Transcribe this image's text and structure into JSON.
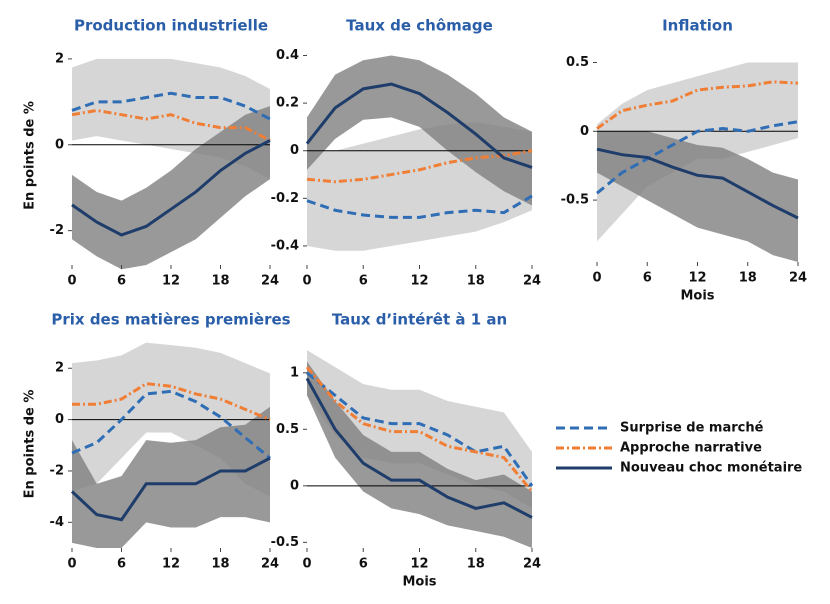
{
  "legend": [
    {
      "name": "Surprise de marché",
      "color": "#2f6db5",
      "dash": "9,5"
    },
    {
      "name": "Approche narrative",
      "color": "#f07e35",
      "dash": "8,3,2,3"
    },
    {
      "name": "Nouveau choc monétaire",
      "color": "#1f3d6b",
      "dash": "none"
    }
  ],
  "chart_data": [
    {
      "type": "line",
      "title": "Production industrielle",
      "ylabel": "En points de %",
      "x": [
        0,
        3,
        6,
        9,
        12,
        15,
        18,
        21,
        24
      ],
      "xlim": [
        0,
        24
      ],
      "xticks": [
        0,
        6,
        12,
        18,
        24
      ],
      "ylim": [
        -2.8,
        2.3
      ],
      "yticks": [
        2,
        0,
        -2
      ],
      "bands": [
        {
          "color": "#d6d6d6",
          "lower": [
            0.1,
            0.2,
            0.1,
            0,
            -0.1,
            -0.2,
            -0.3,
            -0.5,
            -0.8
          ],
          "upper": [
            1.8,
            2.0,
            2.0,
            2.0,
            2.0,
            1.9,
            1.8,
            1.6,
            1.3
          ]
        },
        {
          "color": "#7f7f7f",
          "lower": [
            -2.2,
            -2.6,
            -2.9,
            -2.8,
            -2.5,
            -2.2,
            -1.7,
            -1.2,
            -0.8
          ],
          "upper": [
            -0.7,
            -1.1,
            -1.3,
            -1.0,
            -0.6,
            -0.1,
            0.3,
            0.7,
            0.9
          ]
        }
      ],
      "series": [
        {
          "values": [
            0.8,
            1.0,
            1.0,
            1.1,
            1.2,
            1.1,
            1.1,
            0.9,
            0.6
          ]
        },
        {
          "values": [
            0.7,
            0.8,
            0.7,
            0.6,
            0.7,
            0.5,
            0.4,
            0.4,
            0.1
          ]
        },
        {
          "values": [
            -1.4,
            -1.8,
            -2.1,
            -1.9,
            -1.5,
            -1.1,
            -0.6,
            -0.2,
            0.1
          ]
        }
      ]
    },
    {
      "type": "line",
      "title": "Taux de chômage",
      "x": [
        0,
        3,
        6,
        9,
        12,
        15,
        18,
        21,
        24
      ],
      "xlim": [
        0,
        24
      ],
      "xticks": [
        0,
        6,
        12,
        18,
        24
      ],
      "ylim": [
        -0.48,
        0.44
      ],
      "yticks": [
        0.4,
        0.2,
        0,
        -0.2,
        -0.4
      ],
      "bands": [
        {
          "color": "#d6d6d6",
          "lower": [
            -0.4,
            -0.42,
            -0.42,
            -0.4,
            -0.38,
            -0.36,
            -0.34,
            -0.3,
            -0.25
          ],
          "upper": [
            0.0,
            0.0,
            0.03,
            0.06,
            0.09,
            0.11,
            0.12,
            0.1,
            0.08
          ]
        },
        {
          "color": "#7f7f7f",
          "lower": [
            -0.08,
            0.05,
            0.13,
            0.14,
            0.1,
            0.0,
            -0.09,
            -0.17,
            -0.23
          ],
          "upper": [
            0.14,
            0.32,
            0.38,
            0.4,
            0.38,
            0.32,
            0.24,
            0.14,
            0.08
          ]
        }
      ],
      "series": [
        {
          "values": [
            -0.21,
            -0.25,
            -0.27,
            -0.28,
            -0.28,
            -0.26,
            -0.25,
            -0.26,
            -0.19
          ]
        },
        {
          "values": [
            -0.12,
            -0.13,
            -0.12,
            -0.1,
            -0.08,
            -0.05,
            -0.03,
            -0.02,
            0.0
          ]
        },
        {
          "values": [
            0.03,
            0.18,
            0.26,
            0.28,
            0.24,
            0.16,
            0.07,
            -0.03,
            -0.07
          ]
        }
      ]
    },
    {
      "type": "line",
      "title": "Inflation",
      "xlabel": "Mois",
      "x": [
        0,
        3,
        6,
        9,
        12,
        15,
        18,
        21,
        24
      ],
      "xlim": [
        0,
        24
      ],
      "xticks": [
        0,
        6,
        12,
        18,
        24
      ],
      "ylim": [
        -0.95,
        0.62
      ],
      "yticks": [
        0.5,
        0,
        -0.5
      ],
      "bands": [
        {
          "color": "#d6d6d6",
          "lower": [
            -0.8,
            -0.6,
            -0.4,
            -0.3,
            -0.2,
            -0.2,
            -0.15,
            -0.1,
            -0.05
          ],
          "upper": [
            0.05,
            0.2,
            0.3,
            0.35,
            0.4,
            0.45,
            0.5,
            0.5,
            0.5
          ]
        },
        {
          "color": "#7f7f7f",
          "lower": [
            -0.3,
            -0.4,
            -0.5,
            -0.6,
            -0.7,
            -0.75,
            -0.8,
            -0.9,
            -0.95
          ],
          "upper": [
            0.0,
            0.0,
            0.0,
            -0.05,
            -0.1,
            -0.12,
            -0.2,
            -0.3,
            -0.35
          ]
        }
      ],
      "series": [
        {
          "values": [
            -0.45,
            -0.3,
            -0.2,
            -0.1,
            0.0,
            0.02,
            0.0,
            0.04,
            0.07
          ]
        },
        {
          "values": [
            0.02,
            0.15,
            0.19,
            0.22,
            0.3,
            0.32,
            0.33,
            0.36,
            0.35
          ]
        },
        {
          "values": [
            -0.13,
            -0.17,
            -0.19,
            -0.26,
            -0.32,
            -0.34,
            -0.44,
            -0.54,
            -0.63
          ]
        }
      ]
    },
    {
      "type": "line",
      "title": "Prix des matières premières",
      "ylabel": "En points de %",
      "x": [
        0,
        3,
        6,
        9,
        12,
        15,
        18,
        21,
        24
      ],
      "xlim": [
        0,
        24
      ],
      "xticks": [
        0,
        6,
        12,
        18,
        24
      ],
      "ylim": [
        -5,
        3.1
      ],
      "yticks": [
        2,
        0,
        -2,
        -4
      ],
      "bands": [
        {
          "color": "#d6d6d6",
          "lower": [
            -2.8,
            -2.5,
            -1.5,
            -0.5,
            -0.5,
            -1.0,
            -1.5,
            -2.5,
            -3.0
          ],
          "upper": [
            2.2,
            2.3,
            2.5,
            3.0,
            2.9,
            2.8,
            2.6,
            2.2,
            1.8
          ]
        },
        {
          "color": "#7f7f7f",
          "lower": [
            -4.8,
            -5.0,
            -5.0,
            -4.0,
            -4.2,
            -4.2,
            -3.8,
            -3.8,
            -4.0
          ],
          "upper": [
            -0.8,
            -2.5,
            -2.2,
            -0.8,
            -0.9,
            -0.8,
            -0.3,
            -0.2,
            0.5
          ]
        }
      ],
      "series": [
        {
          "values": [
            -1.3,
            -0.9,
            0,
            1,
            1.1,
            0.7,
            0.1,
            -0.7,
            -1.5
          ]
        },
        {
          "values": [
            0.6,
            0.6,
            0.8,
            1.4,
            1.3,
            1.0,
            0.8,
            0.4,
            0
          ]
        },
        {
          "values": [
            -2.8,
            -3.7,
            -3.9,
            -2.5,
            -2.5,
            -2.5,
            -2.0,
            -2.0,
            -1.5
          ]
        }
      ]
    },
    {
      "type": "line",
      "title": "Taux d’intérêt à 1 an",
      "xlabel": "Mois",
      "x": [
        0,
        3,
        6,
        9,
        12,
        15,
        18,
        21,
        24
      ],
      "xlim": [
        0,
        24
      ],
      "xticks": [
        0,
        6,
        12,
        18,
        24
      ],
      "ylim": [
        -0.55,
        1.29
      ],
      "yticks": [
        1,
        0.5,
        0,
        -0.5
      ],
      "bands": [
        {
          "color": "#d6d6d6",
          "lower": [
            0.8,
            0.45,
            0.25,
            0.2,
            0.2,
            0.1,
            0.0,
            -0.05,
            -0.2
          ],
          "upper": [
            1.2,
            1.05,
            0.9,
            0.85,
            0.85,
            0.75,
            0.7,
            0.65,
            0.3
          ]
        },
        {
          "color": "#7f7f7f",
          "lower": [
            0.8,
            0.25,
            -0.05,
            -0.2,
            -0.25,
            -0.35,
            -0.4,
            -0.45,
            -0.55
          ],
          "upper": [
            1.1,
            0.75,
            0.45,
            0.3,
            0.3,
            0.15,
            0.05,
            0.1,
            -0.05
          ]
        }
      ],
      "series": [
        {
          "values": [
            1.0,
            0.8,
            0.6,
            0.55,
            0.55,
            0.45,
            0.3,
            0.35,
            0.0
          ]
        },
        {
          "values": [
            1.05,
            0.75,
            0.55,
            0.48,
            0.48,
            0.35,
            0.3,
            0.25,
            -0.05
          ]
        },
        {
          "values": [
            0.95,
            0.5,
            0.2,
            0.05,
            0.05,
            -0.1,
            -0.2,
            -0.15,
            -0.28
          ]
        }
      ]
    }
  ]
}
